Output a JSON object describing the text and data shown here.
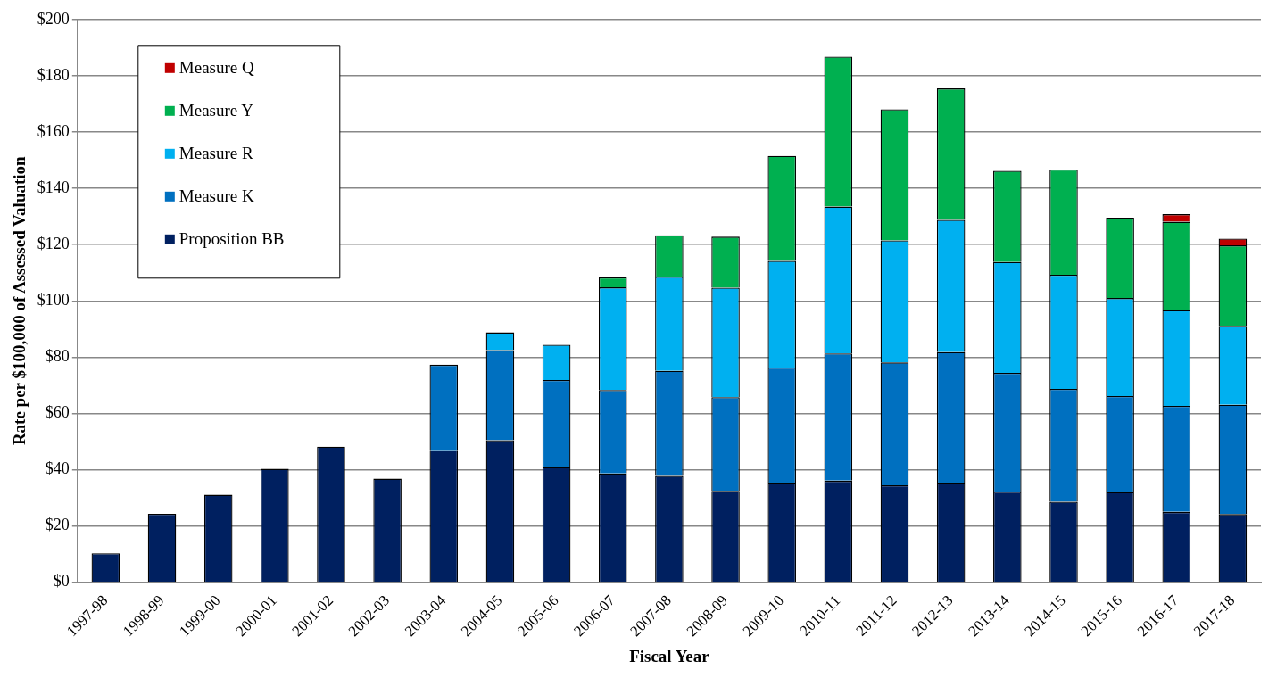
{
  "chart_data": {
    "type": "bar",
    "stacked": true,
    "xlabel": "Fiscal Year",
    "ylabel": "Rate per $100,000 of Assessed Valuation",
    "categories": [
      "1997-98",
      "1998-99",
      "1999-00",
      "2000-01",
      "2001-02",
      "2002-03",
      "2003-04",
      "2004-05",
      "2005-06",
      "2006-07",
      "2007-08",
      "2008-09",
      "2009-10",
      "2010-11",
      "2011-12",
      "2012-13",
      "2013-14",
      "2014-15",
      "2015-16",
      "2016-17",
      "2017-18"
    ],
    "series": [
      {
        "name": "Proposition BB",
        "color": "#002060",
        "values": [
          10.3,
          24.3,
          31.1,
          40.3,
          48.2,
          36.8,
          46.9,
          50.5,
          40.9,
          38.7,
          37.8,
          32.5,
          35.4,
          36.1,
          34.5,
          35.4,
          32.2,
          28.6,
          32.0,
          25.0,
          24.2
        ]
      },
      {
        "name": "Measure K",
        "color": "#0070c0",
        "values": [
          null,
          null,
          null,
          null,
          null,
          null,
          30.4,
          32.0,
          31.0,
          29.6,
          37.3,
          33.3,
          40.9,
          45.2,
          43.6,
          46.4,
          42.2,
          40.1,
          34.2,
          37.7,
          38.9
        ]
      },
      {
        "name": "Measure R",
        "color": "#00b0f0",
        "values": [
          null,
          null,
          null,
          null,
          null,
          null,
          null,
          6.3,
          12.5,
          36.5,
          33.5,
          38.9,
          37.9,
          52.2,
          43.4,
          47.0,
          39.4,
          40.6,
          34.8,
          34.0,
          28.0
        ]
      },
      {
        "name": "Measure Y",
        "color": "#00b050",
        "values": [
          null,
          null,
          null,
          null,
          null,
          null,
          null,
          null,
          null,
          3.5,
          14.7,
          18.1,
          37.3,
          53.3,
          46.6,
          46.7,
          32.4,
          37.4,
          28.6,
          31.4,
          28.6
        ]
      },
      {
        "name": "Measure Q",
        "color": "#c00000",
        "values": [
          null,
          null,
          null,
          null,
          null,
          null,
          null,
          null,
          null,
          null,
          null,
          null,
          null,
          null,
          null,
          null,
          null,
          null,
          null,
          2.7,
          2.4
        ]
      }
    ],
    "ylim": [
      0,
      200
    ],
    "yticks": [
      {
        "value": 0,
        "label": "$0"
      },
      {
        "value": 20,
        "label": "$20"
      },
      {
        "value": 40,
        "label": "$40"
      },
      {
        "value": 60,
        "label": "$60"
      },
      {
        "value": 80,
        "label": "$80"
      },
      {
        "value": 100,
        "label": "$100"
      },
      {
        "value": 120,
        "label": "$120"
      },
      {
        "value": 140,
        "label": "$140"
      },
      {
        "value": 160,
        "label": "$160"
      },
      {
        "value": 180,
        "label": "$180"
      },
      {
        "value": 200,
        "label": "$200"
      }
    ],
    "grid": "y",
    "legend": "top left"
  }
}
